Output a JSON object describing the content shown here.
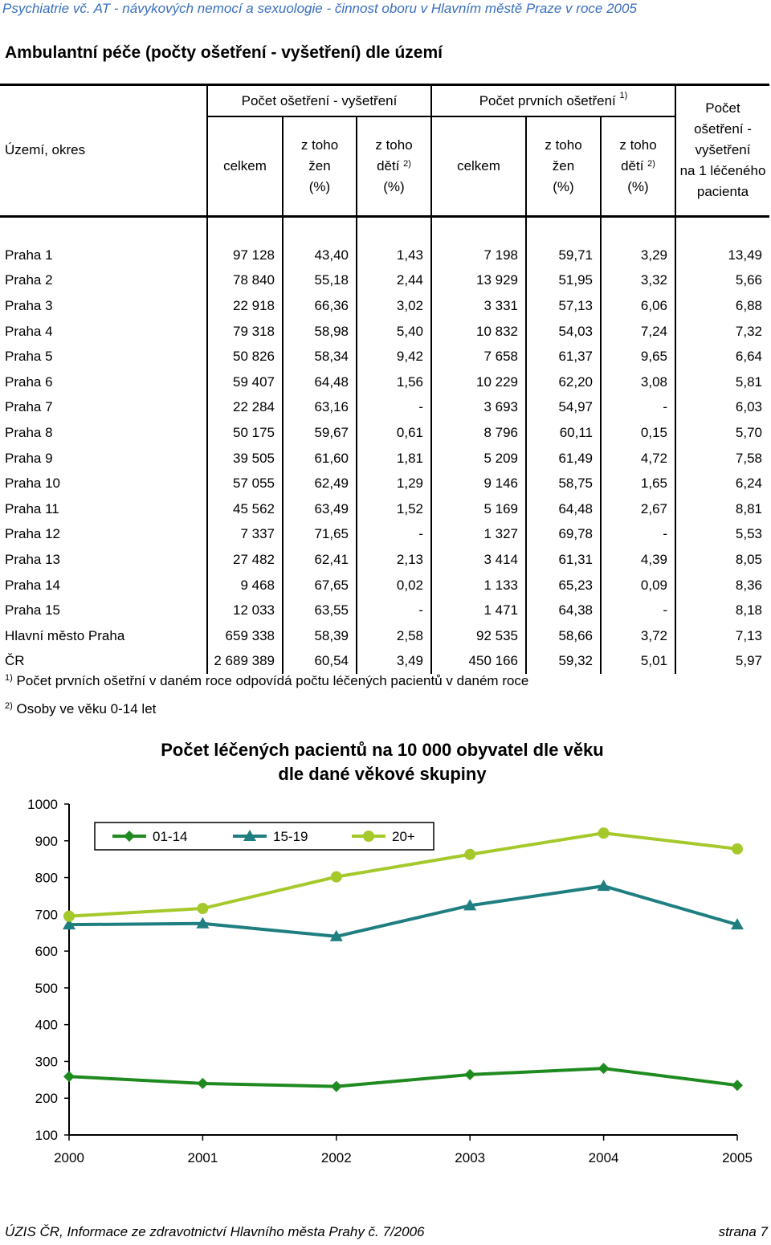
{
  "header": "Psychiatrie vč. AT - návykových nemocí a sexuologie - činnost oboru v Hlavním městě Praze v roce 2005",
  "doc_title": "Ambulantní péče (počty ošetření - vyšetření) dle území",
  "table": {
    "col_territory": "Území, okres",
    "group1": "Počet ošetření - vyšetření",
    "group2": "Počet prvních ošetření",
    "group2_note": "1)",
    "col_last": [
      "Počet",
      "ošetření -",
      "vyšetření",
      "na 1 léčeného",
      "pacienta"
    ],
    "sub_total": "celkem",
    "sub_women": [
      "z toho",
      "žen",
      "(%)"
    ],
    "sub_children": [
      "z toho",
      "dětí",
      "(%)"
    ],
    "sub_children_note": "2)",
    "rows": [
      [
        "Praha 1",
        "97 128",
        "43,40",
        "1,43",
        "7 198",
        "59,71",
        "3,29",
        "13,49"
      ],
      [
        "Praha 2",
        "78 840",
        "55,18",
        "2,44",
        "13 929",
        "51,95",
        "3,32",
        "5,66"
      ],
      [
        "Praha 3",
        "22 918",
        "66,36",
        "3,02",
        "3 331",
        "57,13",
        "6,06",
        "6,88"
      ],
      [
        "Praha 4",
        "79 318",
        "58,98",
        "5,40",
        "10 832",
        "54,03",
        "7,24",
        "7,32"
      ],
      [
        "Praha 5",
        "50 826",
        "58,34",
        "9,42",
        "7 658",
        "61,37",
        "9,65",
        "6,64"
      ],
      [
        "Praha 6",
        "59 407",
        "64,48",
        "1,56",
        "10 229",
        "62,20",
        "3,08",
        "5,81"
      ],
      [
        "Praha 7",
        "22 284",
        "63,16",
        "-",
        "3 693",
        "54,97",
        "-",
        "6,03"
      ],
      [
        "Praha 8",
        "50 175",
        "59,67",
        "0,61",
        "8 796",
        "60,11",
        "0,15",
        "5,70"
      ],
      [
        "Praha 9",
        "39 505",
        "61,60",
        "1,81",
        "5 209",
        "61,49",
        "4,72",
        "7,58"
      ],
      [
        "Praha 10",
        "57 055",
        "62,49",
        "1,29",
        "9 146",
        "58,75",
        "1,65",
        "6,24"
      ],
      [
        "Praha 11",
        "45 562",
        "63,49",
        "1,52",
        "5 169",
        "64,48",
        "2,67",
        "8,81"
      ],
      [
        "Praha 12",
        "7 337",
        "71,65",
        "-",
        "1 327",
        "69,78",
        "-",
        "5,53"
      ],
      [
        "Praha 13",
        "27 482",
        "62,41",
        "2,13",
        "3 414",
        "61,31",
        "4,39",
        "8,05"
      ],
      [
        "Praha 14",
        "9 468",
        "67,65",
        "0,02",
        "1 133",
        "65,23",
        "0,09",
        "8,36"
      ],
      [
        "Praha 15",
        "12 033",
        "63,55",
        "-",
        "1 471",
        "64,38",
        "-",
        "8,18"
      ],
      [
        "Hlavní město Praha",
        "659 338",
        "58,39",
        "2,58",
        "92 535",
        "58,66",
        "3,72",
        "7,13"
      ],
      [
        "ČR",
        "2 689 389",
        "60,54",
        "3,49",
        "450 166",
        "59,32",
        "5,01",
        "5,97"
      ]
    ]
  },
  "notes": [
    {
      "mark": "1)",
      "text": "Počet prvních ošetřní v daném roce odpovídá počtu léčených pacientů v daném roce"
    },
    {
      "mark": "2)",
      "text": "Osoby ve věku 0-14 let"
    }
  ],
  "chart_data": {
    "type": "line",
    "title": "Počet léčených pacientů na 10 000 obyvatel dle věku dle dané věkové skupiny",
    "title_lines": [
      "Počet léčených pacientů na 10 000 obyvatel dle věku",
      "dle dané věkové skupiny"
    ],
    "x": [
      "2000",
      "2001",
      "2002",
      "2003",
      "2004",
      "2005"
    ],
    "ylim": [
      100,
      1000
    ],
    "yticks": [
      "1000",
      "900",
      "800",
      "700",
      "600",
      "500",
      "400",
      "300",
      "200",
      "100"
    ],
    "legend_position": "top",
    "grid": false,
    "series": [
      {
        "name": "01-14",
        "color": "#1f8a1f",
        "marker": "diamond",
        "values": [
          259,
          240,
          232,
          264,
          281,
          235
        ]
      },
      {
        "name": "15-19",
        "color": "#1f7f80",
        "marker": "triangle",
        "values": [
          672,
          675,
          640,
          724,
          777,
          672
        ]
      },
      {
        "name": "20+",
        "color": "#a5c92a",
        "marker": "circle",
        "values": [
          695,
          716,
          802,
          863,
          921,
          878
        ]
      }
    ]
  },
  "footer": {
    "left": "ÚZIS ČR, Informace ze zdravotnictví Hlavního města Prahy č. 7/2006",
    "right": "strana 7"
  }
}
